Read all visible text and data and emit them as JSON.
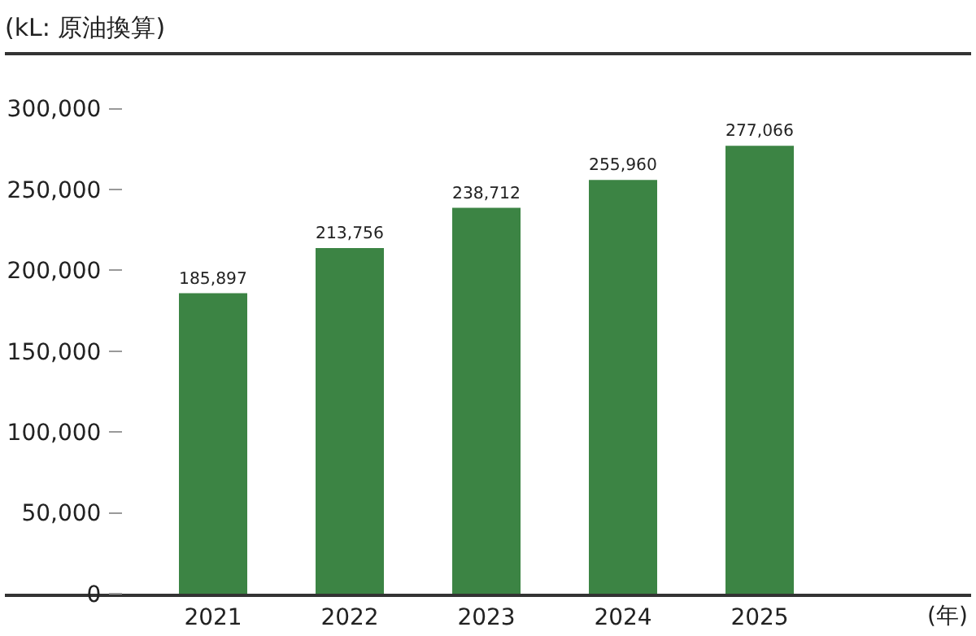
{
  "chart_data": {
    "type": "bar",
    "ylabel": "(kL: 原油換算)",
    "xlabel": "(年)",
    "categories": [
      "2021",
      "2022",
      "2023",
      "2024",
      "2025"
    ],
    "values": [
      185897,
      213756,
      238712,
      255960,
      277066
    ],
    "value_labels": [
      "185,897",
      "213,756",
      "238,712",
      "255,960",
      "277,066"
    ],
    "color": "#3c8444",
    "ylim": [
      0,
      333000
    ],
    "yticks": [
      {
        "value": 0,
        "label": "0"
      },
      {
        "value": 50000,
        "label": "50,000"
      },
      {
        "value": 100000,
        "label": "100,000"
      },
      {
        "value": 150000,
        "label": "150,000"
      },
      {
        "value": 200000,
        "label": "200,000"
      },
      {
        "value": 250000,
        "label": "250,000"
      },
      {
        "value": 300000,
        "label": "300,000"
      }
    ],
    "grid": false
  }
}
